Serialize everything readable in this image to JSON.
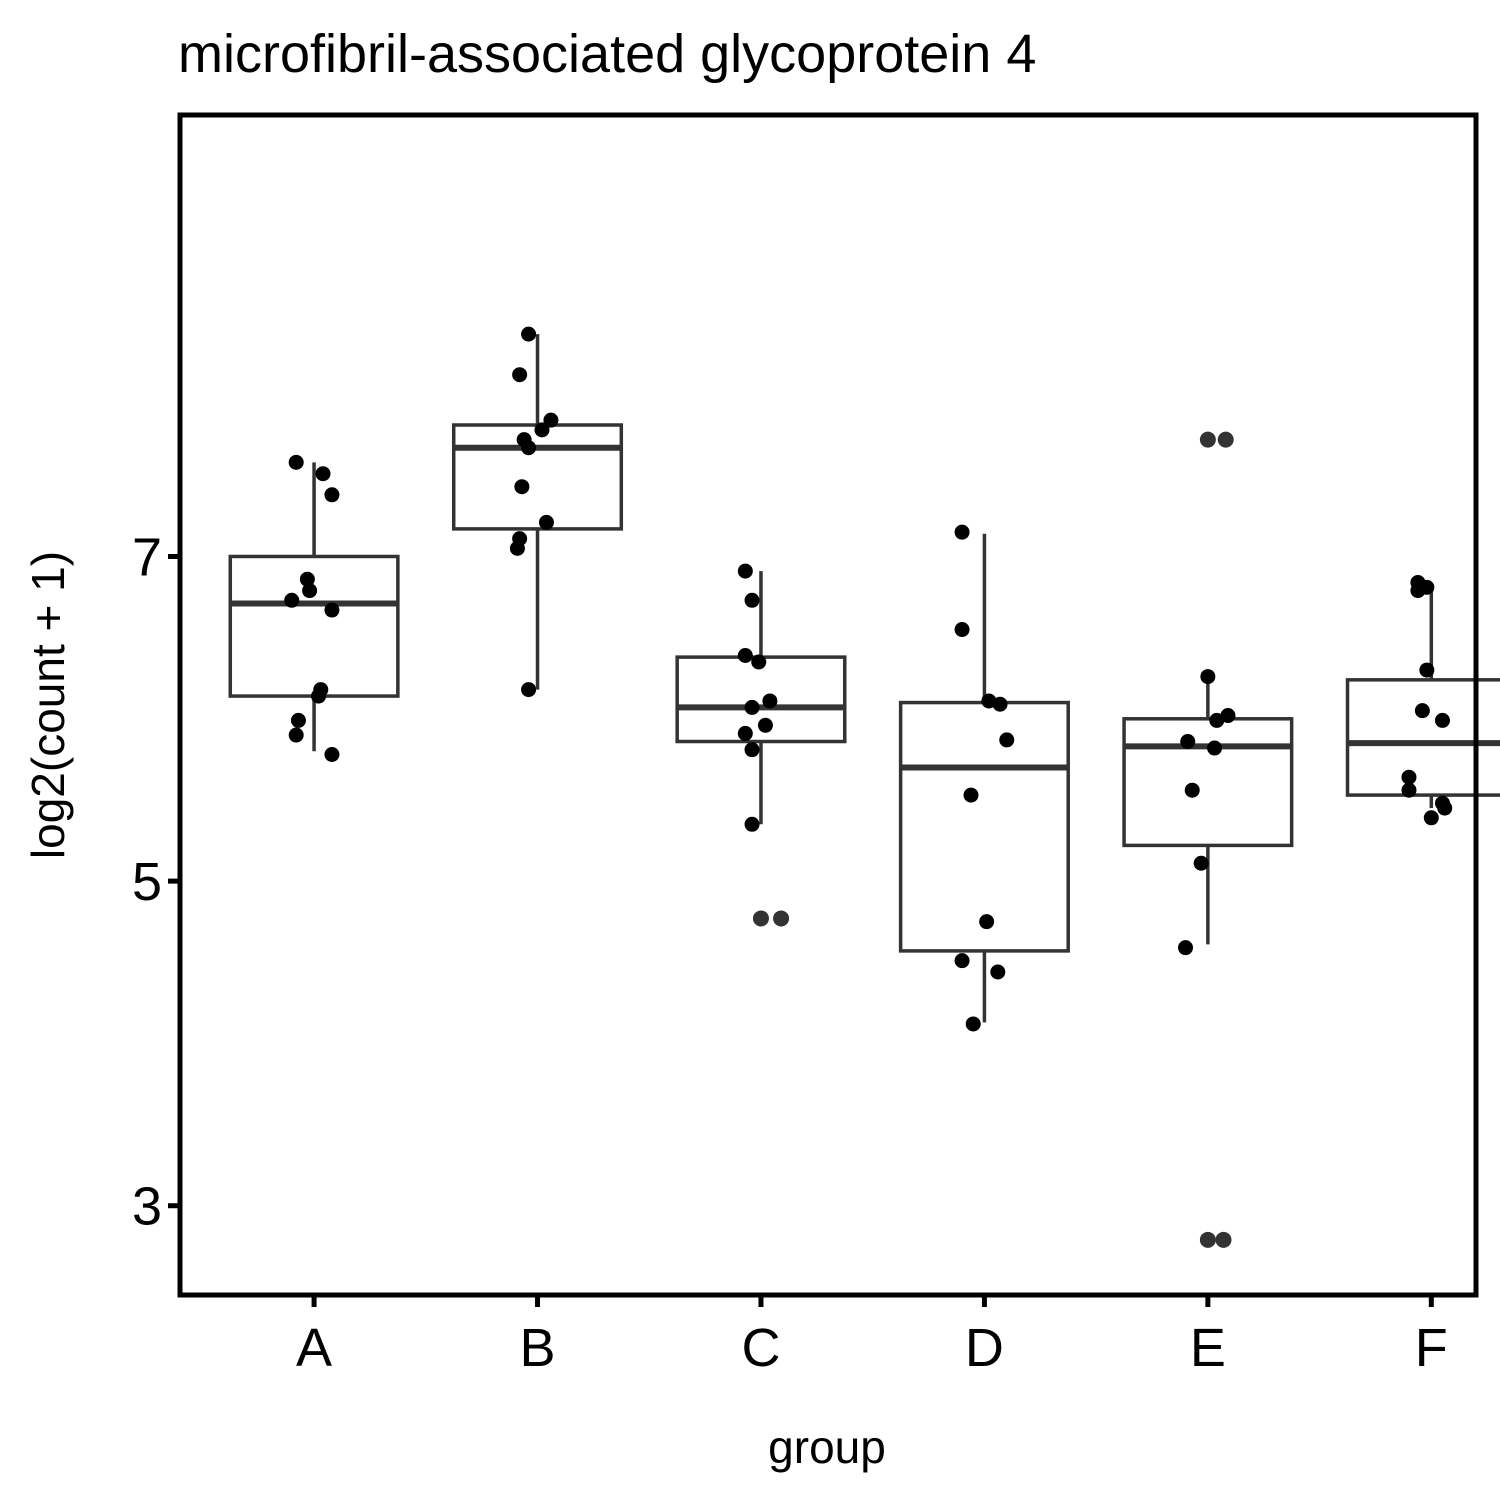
{
  "chart_data": {
    "type": "box",
    "title": "microfibril-associated glycoprotein 4",
    "xlabel": "group",
    "ylabel": "log2(count + 1)",
    "categories": [
      "A",
      "B",
      "C",
      "D",
      "E",
      "F"
    ],
    "yticks": [
      3,
      5,
      7
    ],
    "ylim": [
      2.45,
      9.72
    ],
    "grid": false,
    "legend": "none",
    "colors": {
      "box_line": "#333333",
      "point": "#000000",
      "outlier": "#333333",
      "border": "#000000"
    },
    "groups": [
      {
        "name": "A",
        "box": {
          "lower_whisker": 5.8,
          "q1": 6.14,
          "median": 6.71,
          "q3": 7.0,
          "upper_whisker": 7.58
        },
        "points": [
          {
            "x": -0.08,
            "y": 7.58
          },
          {
            "x": 0.04,
            "y": 7.51
          },
          {
            "x": 0.08,
            "y": 7.38
          },
          {
            "x": -0.03,
            "y": 6.86
          },
          {
            "x": -0.02,
            "y": 6.79
          },
          {
            "x": -0.1,
            "y": 6.73
          },
          {
            "x": 0.08,
            "y": 6.67
          },
          {
            "x": 0.03,
            "y": 6.18
          },
          {
            "x": 0.02,
            "y": 6.14
          },
          {
            "x": -0.07,
            "y": 5.99
          },
          {
            "x": -0.08,
            "y": 5.9
          },
          {
            "x": 0.08,
            "y": 5.78
          }
        ],
        "outliers": []
      },
      {
        "name": "B",
        "box": {
          "lower_whisker": 6.18,
          "q1": 7.17,
          "median": 7.67,
          "q3": 7.81,
          "upper_whisker": 8.37
        },
        "points": [
          {
            "x": -0.04,
            "y": 8.37
          },
          {
            "x": -0.08,
            "y": 8.12
          },
          {
            "x": 0.06,
            "y": 7.84
          },
          {
            "x": 0.02,
            "y": 7.78
          },
          {
            "x": -0.06,
            "y": 7.72
          },
          {
            "x": -0.04,
            "y": 7.67
          },
          {
            "x": -0.07,
            "y": 7.43
          },
          {
            "x": 0.04,
            "y": 7.21
          },
          {
            "x": -0.08,
            "y": 7.11
          },
          {
            "x": -0.09,
            "y": 7.05
          },
          {
            "x": -0.04,
            "y": 6.18
          }
        ],
        "outliers": []
      },
      {
        "name": "C",
        "box": {
          "lower_whisker": 5.35,
          "q1": 5.86,
          "median": 6.07,
          "q3": 6.38,
          "upper_whisker": 6.91
        },
        "points": [
          {
            "x": -0.07,
            "y": 6.91
          },
          {
            "x": -0.04,
            "y": 6.73
          },
          {
            "x": -0.07,
            "y": 6.39
          },
          {
            "x": -0.01,
            "y": 6.35
          },
          {
            "x": 0.04,
            "y": 6.11
          },
          {
            "x": -0.04,
            "y": 6.07
          },
          {
            "x": 0.02,
            "y": 5.96
          },
          {
            "x": -0.07,
            "y": 5.91
          },
          {
            "x": -0.04,
            "y": 5.81
          },
          {
            "x": -0.04,
            "y": 5.35
          }
        ],
        "outliers": [
          {
            "x": 0.0,
            "y": 4.77
          },
          {
            "x": 0.09,
            "y": 4.77
          }
        ]
      },
      {
        "name": "D",
        "box": {
          "lower_whisker": 4.13,
          "q1": 4.57,
          "median": 5.7,
          "q3": 6.1,
          "upper_whisker": 7.14
        },
        "points": [
          {
            "x": -0.1,
            "y": 7.15
          },
          {
            "x": -0.1,
            "y": 6.55
          },
          {
            "x": 0.02,
            "y": 6.11
          },
          {
            "x": 0.07,
            "y": 6.09
          },
          {
            "x": 0.1,
            "y": 5.87
          },
          {
            "x": -0.06,
            "y": 5.53
          },
          {
            "x": 0.01,
            "y": 4.75
          },
          {
            "x": -0.1,
            "y": 4.51
          },
          {
            "x": 0.06,
            "y": 4.44
          },
          {
            "x": -0.05,
            "y": 4.12
          }
        ],
        "outliers": []
      },
      {
        "name": "E",
        "box": {
          "lower_whisker": 4.61,
          "q1": 5.22,
          "median": 5.83,
          "q3": 6.0,
          "upper_whisker": 6.28
        },
        "points": [
          {
            "x": 0.0,
            "y": 6.26
          },
          {
            "x": 0.09,
            "y": 6.02
          },
          {
            "x": 0.04,
            "y": 5.99
          },
          {
            "x": -0.09,
            "y": 5.86
          },
          {
            "x": 0.03,
            "y": 5.82
          },
          {
            "x": -0.07,
            "y": 5.56
          },
          {
            "x": -0.03,
            "y": 5.11
          },
          {
            "x": -0.1,
            "y": 4.59
          }
        ],
        "outliers": [
          {
            "x": 0.0,
            "y": 7.72
          },
          {
            "x": 0.08,
            "y": 7.72
          },
          {
            "x": 0.0,
            "y": 2.79
          },
          {
            "x": 0.07,
            "y": 2.79
          }
        ]
      },
      {
        "name": "F",
        "box": {
          "lower_whisker": 5.45,
          "q1": 5.53,
          "median": 5.85,
          "q3": 6.24,
          "upper_whisker": 6.83
        },
        "points": [
          {
            "x": -0.06,
            "y": 6.84
          },
          {
            "x": -0.06,
            "y": 6.79
          },
          {
            "x": -0.02,
            "y": 6.81
          },
          {
            "x": -0.02,
            "y": 6.3
          },
          {
            "x": -0.04,
            "y": 6.05
          },
          {
            "x": 0.05,
            "y": 5.99
          },
          {
            "x": -0.1,
            "y": 5.64
          },
          {
            "x": -0.1,
            "y": 5.56
          },
          {
            "x": 0.05,
            "y": 5.48
          },
          {
            "x": 0.06,
            "y": 5.45
          },
          {
            "x": 0.0,
            "y": 5.39
          }
        ],
        "outliers": []
      }
    ]
  }
}
